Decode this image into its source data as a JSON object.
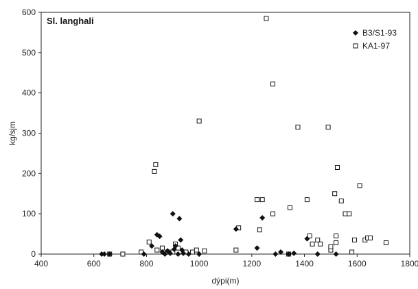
{
  "chart_data": {
    "type": "scatter",
    "title": "Sl. langhali",
    "xlabel": "dýpi(m)",
    "ylabel": "kg/sjm",
    "xlim": [
      400,
      1800
    ],
    "ylim": [
      0,
      600
    ],
    "x_ticks": [
      400,
      600,
      800,
      1000,
      1200,
      1400,
      1600,
      1800
    ],
    "y_ticks": [
      0,
      100,
      200,
      300,
      400,
      500,
      600
    ],
    "grid": false,
    "legend_position": "top-right",
    "series": [
      {
        "name": "B3/S1-93",
        "marker": "diamond-filled",
        "color": "#111111",
        "points": [
          [
            630,
            0
          ],
          [
            640,
            0
          ],
          [
            660,
            0
          ],
          [
            790,
            0
          ],
          [
            820,
            20
          ],
          [
            840,
            48
          ],
          [
            850,
            44
          ],
          [
            860,
            5
          ],
          [
            870,
            0
          ],
          [
            880,
            8
          ],
          [
            890,
            2
          ],
          [
            900,
            100
          ],
          [
            905,
            12
          ],
          [
            910,
            20
          ],
          [
            920,
            0
          ],
          [
            925,
            88
          ],
          [
            930,
            35
          ],
          [
            935,
            10
          ],
          [
            940,
            2
          ],
          [
            960,
            0
          ],
          [
            1000,
            0
          ],
          [
            1140,
            62
          ],
          [
            1220,
            15
          ],
          [
            1240,
            90
          ],
          [
            1290,
            0
          ],
          [
            1310,
            5
          ],
          [
            1340,
            0
          ],
          [
            1360,
            2
          ],
          [
            1410,
            38
          ],
          [
            1450,
            0
          ],
          [
            1520,
            0
          ]
        ]
      },
      {
        "name": "KA1-97",
        "marker": "square-open",
        "color": "#111111",
        "points": [
          [
            660,
            0
          ],
          [
            710,
            0
          ],
          [
            780,
            5
          ],
          [
            810,
            30
          ],
          [
            830,
            205
          ],
          [
            835,
            222
          ],
          [
            840,
            10
          ],
          [
            860,
            15
          ],
          [
            880,
            5
          ],
          [
            900,
            5
          ],
          [
            910,
            25
          ],
          [
            920,
            15
          ],
          [
            950,
            5
          ],
          [
            975,
            5
          ],
          [
            990,
            10
          ],
          [
            1000,
            330
          ],
          [
            1020,
            8
          ],
          [
            1140,
            10
          ],
          [
            1150,
            65
          ],
          [
            1220,
            135
          ],
          [
            1230,
            60
          ],
          [
            1240,
            135
          ],
          [
            1255,
            585
          ],
          [
            1280,
            100
          ],
          [
            1280,
            422
          ],
          [
            1340,
            0
          ],
          [
            1345,
            115
          ],
          [
            1375,
            315
          ],
          [
            1410,
            135
          ],
          [
            1420,
            45
          ],
          [
            1430,
            25
          ],
          [
            1450,
            35
          ],
          [
            1460,
            25
          ],
          [
            1490,
            315
          ],
          [
            1500,
            10
          ],
          [
            1500,
            18
          ],
          [
            1515,
            150
          ],
          [
            1520,
            45
          ],
          [
            1520,
            28
          ],
          [
            1525,
            215
          ],
          [
            1540,
            132
          ],
          [
            1555,
            100
          ],
          [
            1570,
            100
          ],
          [
            1580,
            5
          ],
          [
            1590,
            35
          ],
          [
            1610,
            170
          ],
          [
            1630,
            35
          ],
          [
            1640,
            40
          ],
          [
            1650,
            40
          ],
          [
            1710,
            28
          ]
        ]
      }
    ]
  }
}
